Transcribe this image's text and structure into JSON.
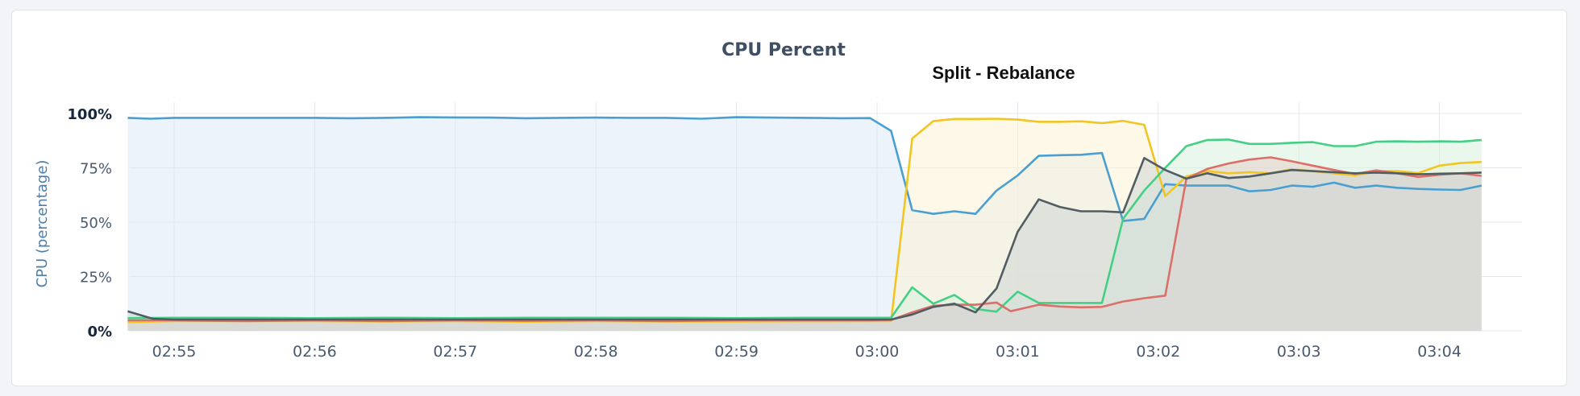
{
  "panel": {
    "title": "CPU Percent",
    "subtitle": "Split - Rebalance"
  },
  "chart_data": {
    "type": "area",
    "title": "CPU Percent",
    "subtitle": "Split - Rebalance",
    "ylabel": "CPU (percentage)",
    "xlabel": "",
    "ylim": [
      0,
      100
    ],
    "y_ticks": [
      {
        "value": 100,
        "label": "100%",
        "bold": true
      },
      {
        "value": 75,
        "label": "75%",
        "bold": false
      },
      {
        "value": 50,
        "label": "50%",
        "bold": false
      },
      {
        "value": 25,
        "label": "25%",
        "bold": false
      },
      {
        "value": 0,
        "label": "0%",
        "bold": true
      }
    ],
    "x_tick_labels": [
      "02:55",
      "02:56",
      "02:57",
      "02:58",
      "02:59",
      "03:00",
      "03:01",
      "03:02",
      "03:03",
      "03:04"
    ],
    "x_tick_minutes": [
      0,
      1,
      2,
      3,
      4,
      5,
      6,
      7,
      8,
      9
    ],
    "xlim_minutes": [
      -0.33,
      9.6
    ],
    "grid": true,
    "legend": "none",
    "series": [
      {
        "color": "#4a9fd0",
        "fill": "#dce9f6",
        "points": [
          [
            -0.33,
            98
          ],
          [
            -0.17,
            97.6
          ],
          [
            0,
            98
          ],
          [
            0.25,
            98
          ],
          [
            0.5,
            98
          ],
          [
            0.75,
            98
          ],
          [
            1,
            98
          ],
          [
            1.25,
            97.8
          ],
          [
            1.5,
            98
          ],
          [
            1.75,
            98.3
          ],
          [
            2,
            98.2
          ],
          [
            2.25,
            98.1
          ],
          [
            2.5,
            97.8
          ],
          [
            2.75,
            98
          ],
          [
            3,
            98.1
          ],
          [
            3.25,
            98
          ],
          [
            3.5,
            98
          ],
          [
            3.75,
            97.6
          ],
          [
            4,
            98.3
          ],
          [
            4.25,
            98.1
          ],
          [
            4.5,
            98
          ],
          [
            4.75,
            97.8
          ],
          [
            4.95,
            97.9
          ],
          [
            5.1,
            92
          ],
          [
            5.25,
            55.5
          ],
          [
            5.4,
            53.8
          ],
          [
            5.55,
            55
          ],
          [
            5.7,
            53.8
          ],
          [
            5.85,
            64.5
          ],
          [
            6.0,
            71.5
          ],
          [
            6.15,
            80.5
          ],
          [
            6.3,
            80.8
          ],
          [
            6.45,
            81
          ],
          [
            6.6,
            81.8
          ],
          [
            6.75,
            50.5
          ],
          [
            6.9,
            51.5
          ],
          [
            7.05,
            67.5
          ],
          [
            7.2,
            66.8
          ],
          [
            7.35,
            66.8
          ],
          [
            7.5,
            66.8
          ],
          [
            7.65,
            64.2
          ],
          [
            7.8,
            64.8
          ],
          [
            7.95,
            66.8
          ],
          [
            8.1,
            66.3
          ],
          [
            8.25,
            68.2
          ],
          [
            8.4,
            65.8
          ],
          [
            8.55,
            66.8
          ],
          [
            8.7,
            65.8
          ],
          [
            8.85,
            65.3
          ],
          [
            9.0,
            65
          ],
          [
            9.15,
            64.8
          ],
          [
            9.3,
            66.8
          ]
        ]
      },
      {
        "color": "#f2c522",
        "fill": "#fcf2d4",
        "points": [
          [
            -0.33,
            4
          ],
          [
            0,
            4.5
          ],
          [
            0.5,
            4.5
          ],
          [
            1,
            4.5
          ],
          [
            1.5,
            4.3
          ],
          [
            2,
            4.5
          ],
          [
            2.5,
            4.2
          ],
          [
            3,
            4.5
          ],
          [
            3.5,
            4.3
          ],
          [
            4,
            4.3
          ],
          [
            4.5,
            4.4
          ],
          [
            4.95,
            4.5
          ],
          [
            5.1,
            4.5
          ],
          [
            5.25,
            88.5
          ],
          [
            5.4,
            96.5
          ],
          [
            5.55,
            97.5
          ],
          [
            5.7,
            97.5
          ],
          [
            5.85,
            97.6
          ],
          [
            6.0,
            97.2
          ],
          [
            6.15,
            96.2
          ],
          [
            6.3,
            96.2
          ],
          [
            6.45,
            96.4
          ],
          [
            6.6,
            95.6
          ],
          [
            6.75,
            96.6
          ],
          [
            6.9,
            94.8
          ],
          [
            7.05,
            62
          ],
          [
            7.2,
            71
          ],
          [
            7.35,
            73.5
          ],
          [
            7.5,
            72.5
          ],
          [
            7.65,
            73
          ],
          [
            7.8,
            72.5
          ],
          [
            7.95,
            74.3
          ],
          [
            8.1,
            73.5
          ],
          [
            8.25,
            72.5
          ],
          [
            8.4,
            71.5
          ],
          [
            8.55,
            73.5
          ],
          [
            8.7,
            73.5
          ],
          [
            8.85,
            72.6
          ],
          [
            9.0,
            76
          ],
          [
            9.15,
            77.2
          ],
          [
            9.3,
            77.7
          ]
        ]
      },
      {
        "color": "#44d084",
        "fill": "#d9f0df",
        "points": [
          [
            -0.33,
            5.8
          ],
          [
            0,
            6
          ],
          [
            0.5,
            6
          ],
          [
            1,
            5.8
          ],
          [
            1.5,
            6
          ],
          [
            2,
            5.8
          ],
          [
            2.5,
            6
          ],
          [
            3,
            6
          ],
          [
            3.5,
            6
          ],
          [
            4,
            5.8
          ],
          [
            4.5,
            6
          ],
          [
            4.95,
            6
          ],
          [
            5.1,
            6
          ],
          [
            5.25,
            20
          ],
          [
            5.4,
            12.5
          ],
          [
            5.55,
            16.5
          ],
          [
            5.7,
            10
          ],
          [
            5.85,
            8.8
          ],
          [
            6.0,
            18
          ],
          [
            6.15,
            12.8
          ],
          [
            6.3,
            12.8
          ],
          [
            6.45,
            12.8
          ],
          [
            6.6,
            12.8
          ],
          [
            6.75,
            51.5
          ],
          [
            6.9,
            64.5
          ],
          [
            7.05,
            75
          ],
          [
            7.2,
            85
          ],
          [
            7.35,
            87.8
          ],
          [
            7.5,
            88
          ],
          [
            7.65,
            86
          ],
          [
            7.8,
            86
          ],
          [
            7.95,
            86.5
          ],
          [
            8.1,
            86.8
          ],
          [
            8.25,
            85
          ],
          [
            8.4,
            85
          ],
          [
            8.55,
            87
          ],
          [
            8.7,
            87.2
          ],
          [
            8.85,
            87
          ],
          [
            9.0,
            87.2
          ],
          [
            9.15,
            87
          ],
          [
            9.3,
            87.8
          ]
        ]
      },
      {
        "color": "#dc7068",
        "fill": "#e4d4cc",
        "points": [
          [
            -0.33,
            4.8
          ],
          [
            0,
            4.8
          ],
          [
            0.5,
            4.5
          ],
          [
            1,
            4.8
          ],
          [
            1.5,
            4.5
          ],
          [
            2,
            4.8
          ],
          [
            2.5,
            4.6
          ],
          [
            3,
            4.8
          ],
          [
            3.5,
            4.5
          ],
          [
            4,
            4.8
          ],
          [
            4.5,
            4.8
          ],
          [
            4.95,
            4.8
          ],
          [
            5.1,
            5
          ],
          [
            5.25,
            8.5
          ],
          [
            5.4,
            11.5
          ],
          [
            5.55,
            12
          ],
          [
            5.7,
            12
          ],
          [
            5.85,
            13
          ],
          [
            5.95,
            9
          ],
          [
            6.15,
            12
          ],
          [
            6.3,
            11.2
          ],
          [
            6.45,
            10.8
          ],
          [
            6.6,
            11
          ],
          [
            6.75,
            13.5
          ],
          [
            6.9,
            15
          ],
          [
            7.05,
            16.2
          ],
          [
            7.2,
            70
          ],
          [
            7.35,
            74.5
          ],
          [
            7.5,
            77
          ],
          [
            7.65,
            78.8
          ],
          [
            7.8,
            79.8
          ],
          [
            7.95,
            78
          ],
          [
            8.1,
            76
          ],
          [
            8.25,
            74
          ],
          [
            8.4,
            72.2
          ],
          [
            8.55,
            73.8
          ],
          [
            8.7,
            72.5
          ],
          [
            8.85,
            70.8
          ],
          [
            9.0,
            71.8
          ],
          [
            9.15,
            72.5
          ],
          [
            9.3,
            71.3
          ]
        ]
      },
      {
        "color": "#505d63",
        "fill": "#d0d6d5",
        "points": [
          [
            -0.33,
            9
          ],
          [
            -0.15,
            5.5
          ],
          [
            0,
            5.2
          ],
          [
            0.5,
            5.2
          ],
          [
            1,
            5.2
          ],
          [
            1.5,
            5.2
          ],
          [
            2,
            5.2
          ],
          [
            2.5,
            5.2
          ],
          [
            3,
            5.2
          ],
          [
            3.5,
            5.2
          ],
          [
            4,
            5.2
          ],
          [
            4.5,
            5.2
          ],
          [
            4.95,
            5.2
          ],
          [
            5.1,
            5.2
          ],
          [
            5.25,
            7.5
          ],
          [
            5.4,
            11
          ],
          [
            5.55,
            12.5
          ],
          [
            5.7,
            8.5
          ],
          [
            5.85,
            19.5
          ],
          [
            6.0,
            45.5
          ],
          [
            6.15,
            60.5
          ],
          [
            6.3,
            57
          ],
          [
            6.45,
            55
          ],
          [
            6.6,
            55
          ],
          [
            6.75,
            54.5
          ],
          [
            6.9,
            79.5
          ],
          [
            7.05,
            74
          ],
          [
            7.2,
            70
          ],
          [
            7.35,
            72.5
          ],
          [
            7.5,
            70.3
          ],
          [
            7.65,
            71
          ],
          [
            7.8,
            72.5
          ],
          [
            7.95,
            74
          ],
          [
            8.1,
            73.5
          ],
          [
            8.25,
            73
          ],
          [
            8.4,
            72.5
          ],
          [
            8.55,
            72.8
          ],
          [
            8.7,
            72.5
          ],
          [
            8.85,
            72
          ],
          [
            9.0,
            72.3
          ],
          [
            9.15,
            72.5
          ],
          [
            9.3,
            72.8
          ]
        ]
      }
    ]
  }
}
